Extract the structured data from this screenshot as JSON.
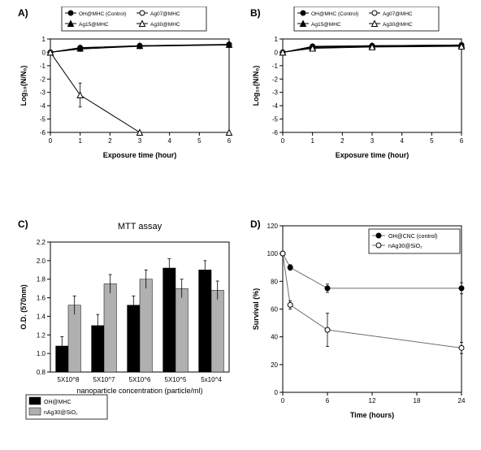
{
  "panelA": {
    "type": "line",
    "label": "A)",
    "label_fontsize": 12,
    "xlabel": "Exposure time (hour)",
    "ylabel": "Log₁₀(N/N₀)",
    "axis_fontsize": 9,
    "tick_fontsize": 8,
    "xlim": [
      0,
      6
    ],
    "ylim": [
      -6,
      1
    ],
    "xticks": [
      0,
      1,
      2,
      3,
      4,
      5,
      6
    ],
    "yticks": [
      -6,
      -5,
      -4,
      -3,
      -2,
      -1,
      0,
      1
    ],
    "series": [
      {
        "name": "OH@MHC (Control)",
        "marker": "circle",
        "fill": "#000000",
        "x": [
          0,
          1,
          3,
          6
        ],
        "y": [
          0,
          0.35,
          0.5,
          0.6
        ],
        "err": [
          0,
          0.1,
          0.1,
          0.1
        ]
      },
      {
        "name": "Ag07@MHC",
        "marker": "circle",
        "fill": "#ffffff",
        "x": [
          0,
          1,
          3,
          6
        ],
        "y": [
          0,
          0.25,
          0.45,
          0.55
        ],
        "err": [
          0,
          0.1,
          0.1,
          0.1
        ]
      },
      {
        "name": "Ag15@MHC",
        "marker": "triangle",
        "fill": "#000000",
        "x": [
          0,
          1,
          3,
          6
        ],
        "y": [
          0,
          0.3,
          0.5,
          0.58
        ],
        "err": [
          0,
          0.1,
          0.1,
          0.1
        ]
      },
      {
        "name": "Ag30@MHC",
        "marker": "triangle",
        "fill": "#ffffff",
        "x": [
          0,
          1,
          3,
          6
        ],
        "y": [
          0,
          -3.2,
          -6,
          -6
        ],
        "err": [
          0,
          0.9,
          0,
          0
        ]
      }
    ],
    "line_color": "#000000",
    "legend_box": true
  },
  "panelB": {
    "type": "line",
    "label": "B)",
    "label_fontsize": 12,
    "xlabel": "Exposure time (hour)",
    "ylabel": "Log₁₀(N/N₀)",
    "axis_fontsize": 9,
    "tick_fontsize": 8,
    "xlim": [
      0,
      6
    ],
    "ylim": [
      -6,
      1
    ],
    "xticks": [
      0,
      1,
      2,
      3,
      4,
      5,
      6
    ],
    "yticks": [
      -6,
      -5,
      -4,
      -3,
      -2,
      -1,
      0,
      1
    ],
    "series": [
      {
        "name": "OH@MHC (Control)",
        "marker": "circle",
        "fill": "#000000",
        "x": [
          0,
          1,
          3,
          6
        ],
        "y": [
          0,
          0.45,
          0.5,
          0.55
        ],
        "err": [
          0,
          0.08,
          0.08,
          0.08
        ]
      },
      {
        "name": "Ag07@MHC",
        "marker": "circle",
        "fill": "#ffffff",
        "x": [
          0,
          1,
          3,
          6
        ],
        "y": [
          0,
          0.35,
          0.45,
          0.5
        ],
        "err": [
          0,
          0.08,
          0.08,
          0.08
        ]
      },
      {
        "name": "Ag15@MHC",
        "marker": "triangle",
        "fill": "#000000",
        "x": [
          0,
          1,
          3,
          6
        ],
        "y": [
          0,
          0.4,
          0.5,
          0.55
        ],
        "err": [
          0,
          0.08,
          0.08,
          0.08
        ]
      },
      {
        "name": "Ag30@MHC",
        "marker": "triangle",
        "fill": "#ffffff",
        "x": [
          0,
          1,
          3,
          6
        ],
        "y": [
          0,
          0.3,
          0.4,
          0.45
        ],
        "err": [
          0,
          0.08,
          0.08,
          0.08
        ]
      }
    ],
    "line_color": "#000000",
    "legend_box": true
  },
  "panelC": {
    "type": "bar",
    "label": "C)",
    "label_fontsize": 12,
    "title": "MTT assay",
    "title_fontsize": 11,
    "xlabel": "nanoparticle concentration (particle/ml)",
    "ylabel": "O.D. (570nm)",
    "axis_fontsize": 9,
    "tick_fontsize": 8,
    "categories": [
      "5X10^8",
      "5X10^7",
      "5X10^6",
      "5X10^5",
      "5x10^4"
    ],
    "ylim": [
      0.8,
      2.2
    ],
    "yticks": [
      0.8,
      1.0,
      1.2,
      1.4,
      1.6,
      1.8,
      2.0,
      2.2
    ],
    "series": [
      {
        "name": "OH@MHC",
        "color": "#000000",
        "values": [
          1.08,
          1.3,
          1.52,
          1.92,
          1.9
        ],
        "err": [
          0.1,
          0.12,
          0.1,
          0.1,
          0.1
        ]
      },
      {
        "name": "nAg30@SiO₂",
        "color": "#b0b0b0",
        "values": [
          1.52,
          1.75,
          1.8,
          1.7,
          1.68
        ],
        "err": [
          0.1,
          0.1,
          0.1,
          0.1,
          0.1
        ]
      }
    ],
    "bar_width": 0.35,
    "legend_box": true
  },
  "panelD": {
    "type": "line",
    "label": "D)",
    "label_fontsize": 12,
    "xlabel": "Time (hours)",
    "ylabel": "Survival (%)",
    "axis_fontsize": 9,
    "tick_fontsize": 8,
    "xlim": [
      0,
      24
    ],
    "ylim": [
      0,
      120
    ],
    "xticks": [
      0,
      6,
      12,
      18,
      24
    ],
    "yticks": [
      0,
      20,
      40,
      60,
      80,
      100,
      120
    ],
    "series": [
      {
        "name": "OH@CNC (control)",
        "marker": "circle",
        "fill": "#000000",
        "x": [
          0,
          1,
          6,
          24
        ],
        "y": [
          100,
          90,
          75,
          75
        ],
        "err": [
          0,
          2,
          3,
          4
        ]
      },
      {
        "name": "nAg30@SiO₂",
        "marker": "circle",
        "fill": "#ffffff",
        "x": [
          0,
          1,
          6,
          24
        ],
        "y": [
          100,
          63,
          45,
          32
        ],
        "err": [
          0,
          3,
          12,
          4
        ]
      }
    ],
    "line_color": "#6f6f6f",
    "legend_box": true
  }
}
